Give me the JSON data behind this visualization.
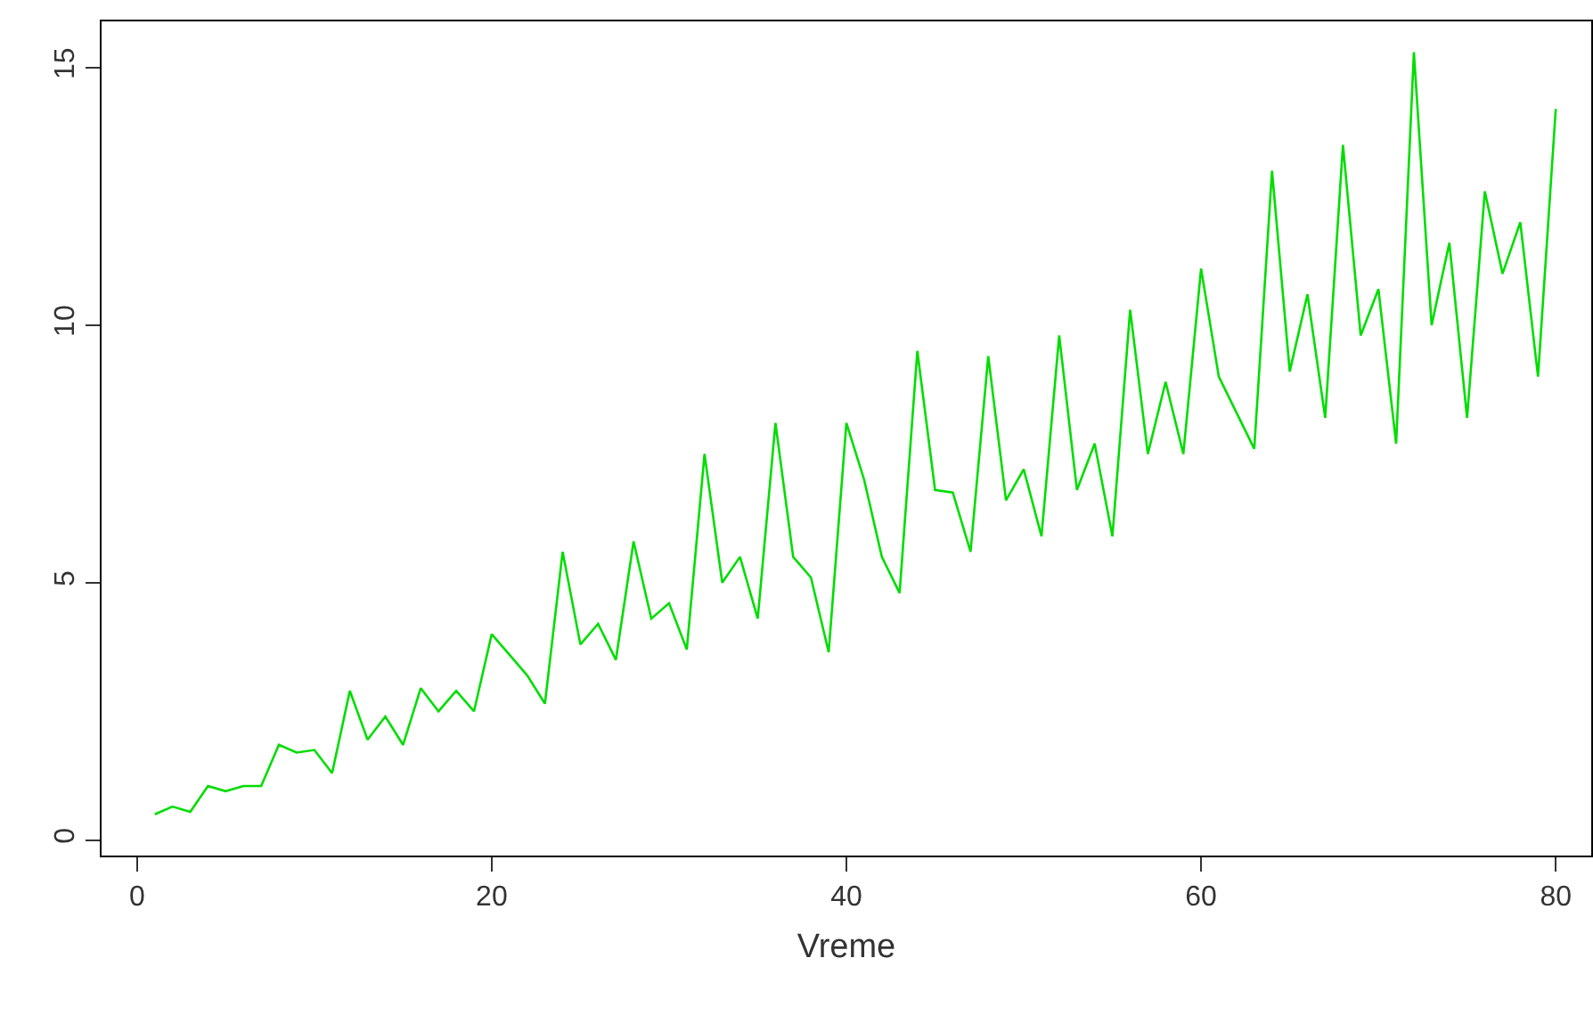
{
  "chart_data": {
    "type": "line",
    "xlabel": "Vreme",
    "x": [
      1,
      2,
      3,
      4,
      5,
      6,
      7,
      8,
      9,
      10,
      11,
      12,
      13,
      14,
      15,
      16,
      17,
      18,
      19,
      20,
      21,
      22,
      23,
      24,
      25,
      26,
      27,
      28,
      29,
      30,
      31,
      32,
      33,
      34,
      35,
      36,
      37,
      38,
      39,
      40,
      41,
      42,
      43,
      44,
      45,
      46,
      47,
      48,
      49,
      50,
      51,
      52,
      53,
      54,
      55,
      56,
      57,
      58,
      59,
      60,
      61,
      62,
      63,
      64,
      65,
      66,
      67,
      68,
      69,
      70,
      71,
      72,
      73,
      74,
      75,
      76,
      77,
      78,
      79,
      80
    ],
    "series": [
      {
        "color": "#00dd00",
        "values": [
          0.5,
          0.65,
          0.55,
          1.05,
          0.95,
          1.05,
          1.05,
          1.85,
          1.7,
          1.75,
          1.3,
          2.9,
          1.95,
          2.4,
          1.85,
          2.95,
          2.5,
          2.9,
          2.5,
          4.0,
          3.6,
          3.2,
          2.65,
          5.6,
          3.8,
          4.2,
          3.5,
          5.8,
          4.3,
          4.6,
          3.7,
          7.5,
          5.0,
          5.5,
          4.3,
          8.1,
          5.5,
          5.1,
          3.65,
          8.1,
          7.0,
          5.5,
          4.8,
          9.5,
          6.8,
          6.75,
          5.6,
          9.4,
          6.6,
          7.2,
          5.9,
          9.8,
          6.8,
          7.7,
          5.9,
          10.3,
          7.5,
          8.9,
          7.5,
          11.1,
          9.0,
          8.3,
          7.6,
          13.0,
          9.1,
          10.6,
          8.2,
          13.5,
          9.8,
          10.7,
          7.7,
          15.3,
          10.0,
          11.6,
          8.2,
          12.6,
          11.0,
          12.0,
          9.0,
          14.2
        ]
      }
    ],
    "xlim": [
      -2,
      82
    ],
    "xticks": [
      0,
      20,
      40,
      60,
      80
    ],
    "ylim": [
      -0.3,
      15.9
    ],
    "yticks": [
      0,
      5,
      10,
      15
    ],
    "grid": false,
    "marker": "none",
    "line_style": "solid"
  }
}
